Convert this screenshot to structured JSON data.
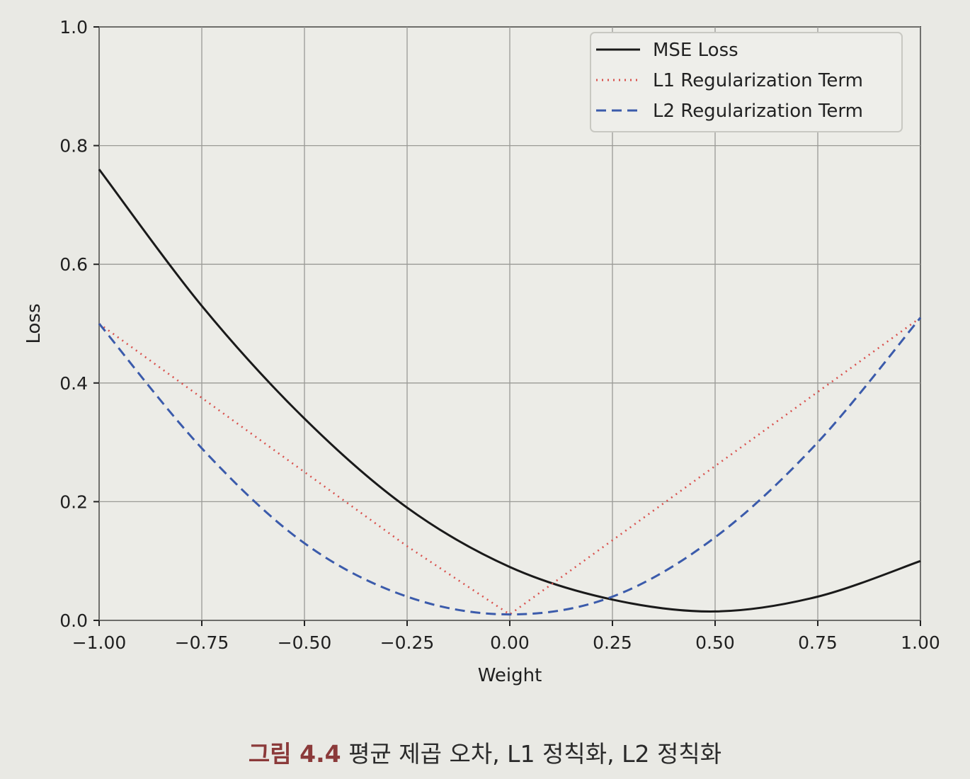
{
  "chart_data": {
    "type": "line",
    "title": "",
    "xlabel": "Weight",
    "ylabel": "Loss",
    "xlim": [
      -1.0,
      1.0
    ],
    "ylim": [
      0.0,
      1.0
    ],
    "xticks": [
      "−1.00",
      "−0.75",
      "−0.50",
      "−0.25",
      "0.00",
      "0.25",
      "0.50",
      "0.75",
      "1.00"
    ],
    "xtick_values": [
      -1.0,
      -0.75,
      -0.5,
      -0.25,
      0.0,
      0.25,
      0.5,
      0.75,
      1.0
    ],
    "yticks": [
      "0.0",
      "0.2",
      "0.4",
      "0.6",
      "0.8",
      "1.0"
    ],
    "ytick_values": [
      0.0,
      0.2,
      0.4,
      0.6,
      0.8,
      1.0
    ],
    "grid": true,
    "legend_position": "top-right",
    "x": [
      -1.0,
      -0.75,
      -0.5,
      -0.25,
      0.0,
      0.25,
      0.5,
      0.75,
      1.0
    ],
    "series": [
      {
        "name": "MSE Loss",
        "style": "solid",
        "color": "#1a1a1a",
        "values": [
          0.76,
          0.53,
          0.34,
          0.19,
          0.09,
          0.035,
          0.015,
          0.04,
          0.1
        ]
      },
      {
        "name": "L1 Regularization Term",
        "style": "dotted",
        "color": "#d9534f",
        "values": [
          0.5,
          0.375,
          0.25,
          0.125,
          0.01,
          0.135,
          0.26,
          0.385,
          0.51
        ]
      },
      {
        "name": "L2 Regularization Term",
        "style": "dashed",
        "color": "#3b5bab",
        "values": [
          0.5,
          0.29,
          0.13,
          0.04,
          0.01,
          0.04,
          0.14,
          0.3,
          0.51
        ]
      }
    ]
  },
  "caption": {
    "label": "그림 4.4",
    "text": " 평균 제곱 오차, L1 정칙화, L2 정칙화"
  }
}
